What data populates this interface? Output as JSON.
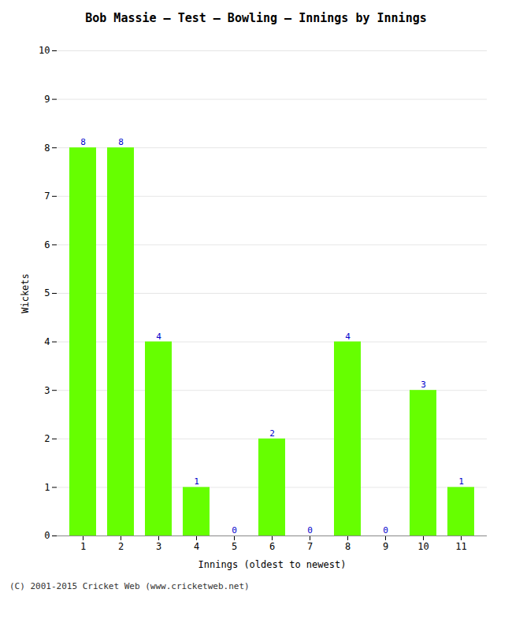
{
  "chart_data": {
    "type": "bar",
    "title": "Bob Massie – Test – Bowling – Innings by Innings",
    "x_label": "Innings (oldest to newest)",
    "y_label": "Wickets",
    "categories": [
      "1",
      "2",
      "3",
      "4",
      "5",
      "6",
      "7",
      "8",
      "9",
      "10",
      "11"
    ],
    "values": [
      8,
      8,
      4,
      1,
      0,
      2,
      0,
      4,
      0,
      3,
      1
    ],
    "color": "#66ff00",
    "ylim": [
      0,
      10
    ],
    "yticks": [
      0,
      1,
      2,
      3,
      4,
      5,
      6,
      7,
      8,
      9,
      10
    ],
    "grid": true,
    "data_labels": true,
    "annotations": [
      "(C) 2001-2015 Cricket Web (www.cricketweb.net)"
    ]
  }
}
